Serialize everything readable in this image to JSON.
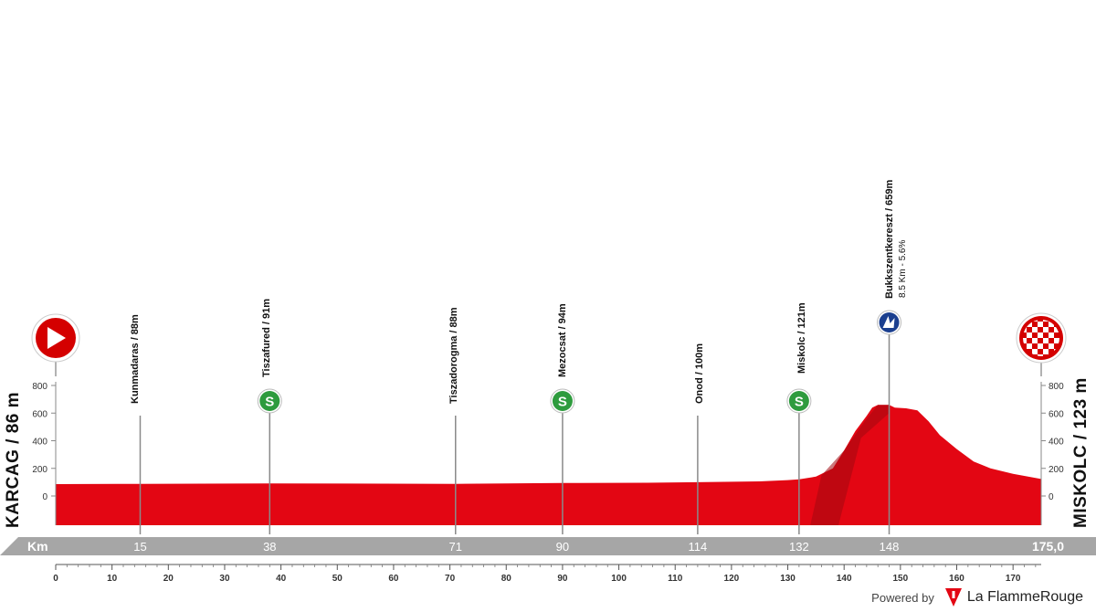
{
  "stage": {
    "start": {
      "name": "KARCAG",
      "altitude": "86 m",
      "label": "KARCAG / 86 m"
    },
    "finish": {
      "name": "MISKOLC",
      "altitude": "123 m",
      "label": "MISKOLC / 123 m"
    }
  },
  "waypoints": [
    {
      "km": 15,
      "km_label": "15",
      "label": "Kunmadaras / 88m",
      "type": "town"
    },
    {
      "km": 38,
      "km_label": "38",
      "label": "Tiszafured / 91m",
      "type": "sprint"
    },
    {
      "km": 71,
      "km_label": "71",
      "label": "Tiszadorogma / 88m",
      "type": "town"
    },
    {
      "km": 90,
      "km_label": "90",
      "label": "Mezocsat / 94m",
      "type": "sprint"
    },
    {
      "km": 114,
      "km_label": "114",
      "label": "Onod / 100m",
      "type": "town"
    },
    {
      "km": 132,
      "km_label": "132",
      "label": "Miskolc / 121m",
      "type": "sprint"
    },
    {
      "km": 148,
      "km_label": "148",
      "label": "Bukkszentkereszt / 659m",
      "sub_label": "8.5 Km - 5.6%",
      "type": "climb"
    }
  ],
  "km_bar": {
    "label": "Km",
    "total": "175,0"
  },
  "icons": {
    "start": "start-arrow-icon",
    "finish": "finish-checkered-icon",
    "sprint": "sprint-s-icon",
    "climb": "climb-mountain-icon",
    "brand": "la-flamme-rouge-logo-icon"
  },
  "colors": {
    "profile_fill": "#e30613",
    "profile_dark": "#a30a10",
    "km_bar": "#a6a6a6",
    "sprint": "#2e9b3e",
    "climb": "#1b3f8f",
    "start_finish": "#d40000"
  },
  "footer": {
    "powered_by": "Powered by",
    "brand": "La FlammeRouge"
  },
  "chart_data": {
    "type": "area",
    "title": "",
    "xlabel": "Km",
    "ylabel": "",
    "xlim": [
      0,
      175
    ],
    "ylim": [
      0,
      800
    ],
    "x_ticks": [
      0,
      10,
      20,
      30,
      40,
      50,
      60,
      70,
      80,
      90,
      100,
      110,
      120,
      130,
      140,
      150,
      160,
      170
    ],
    "y_ticks": [
      0,
      200,
      400,
      600,
      800
    ],
    "grid": false,
    "series": [
      {
        "x": [
          0,
          15,
          38,
          71,
          90,
          105,
          114,
          125,
          130,
          132,
          135,
          138,
          140,
          142,
          144,
          145,
          146,
          147,
          148,
          149,
          151,
          153,
          155,
          157,
          160,
          163,
          166,
          170,
          175
        ],
        "y": [
          86,
          88,
          91,
          88,
          94,
          96,
          100,
          106,
          115,
          121,
          140,
          200,
          330,
          470,
          580,
          640,
          659,
          659,
          659,
          640,
          635,
          620,
          540,
          440,
          340,
          250,
          200,
          160,
          123
        ]
      }
    ]
  }
}
